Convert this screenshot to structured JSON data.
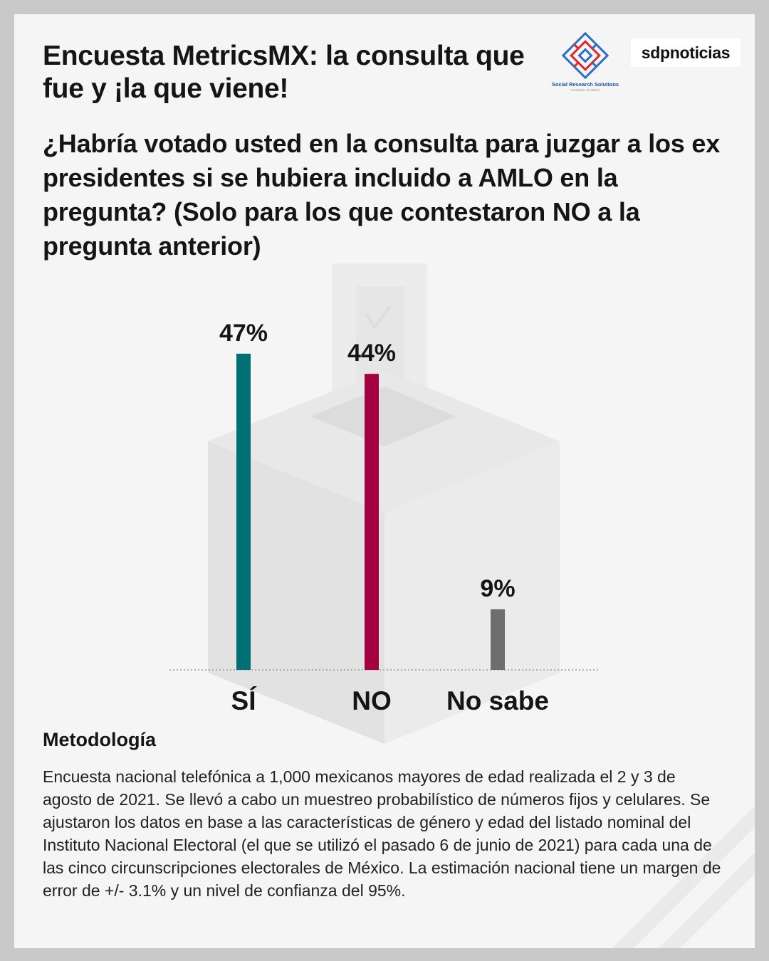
{
  "header": {
    "title": "Encuesta MetricsMX: la consulta que fue y ¡la que viene!",
    "question": "¿Habría votado usted en la consulta para juzgar a los ex presidentes si se hubiera incluido a AMLO en la pregunta? (Solo para los que contestaron NO a la pregunta anterior)"
  },
  "logos": {
    "srs_name": "Social Research Solutions",
    "srs_sub": "a member of metrics",
    "sdp": "sdpnoticias"
  },
  "chart_data": {
    "type": "bar",
    "title": "",
    "categories": [
      "SÍ",
      "NO",
      "No sabe"
    ],
    "values": [
      47,
      44,
      9
    ],
    "labels": [
      "47%",
      "44%",
      "9%"
    ],
    "colors": [
      "#007074",
      "#a50040",
      "#6e6e6e"
    ],
    "ylim": [
      0,
      50
    ],
    "xlabel": "",
    "ylabel": "",
    "grid": false
  },
  "methodology": {
    "title": "Metodología",
    "text": "Encuesta nacional telefónica a 1,000 mexicanos mayores de edad realizada el 2 y 3 de agosto de 2021. Se llevó a cabo un muestreo probabilístico de números fijos y celulares. Se ajustaron los datos en base a las características de género y edad del listado nominal del Instituto Nacional Electoral (el que se utilizó el pasado 6 de junio de 2021) para cada una de las cinco circunscripciones electorales de México. La estimación nacional tiene un margen de error de +/- 3.1% y un nivel de confianza del 95%."
  }
}
